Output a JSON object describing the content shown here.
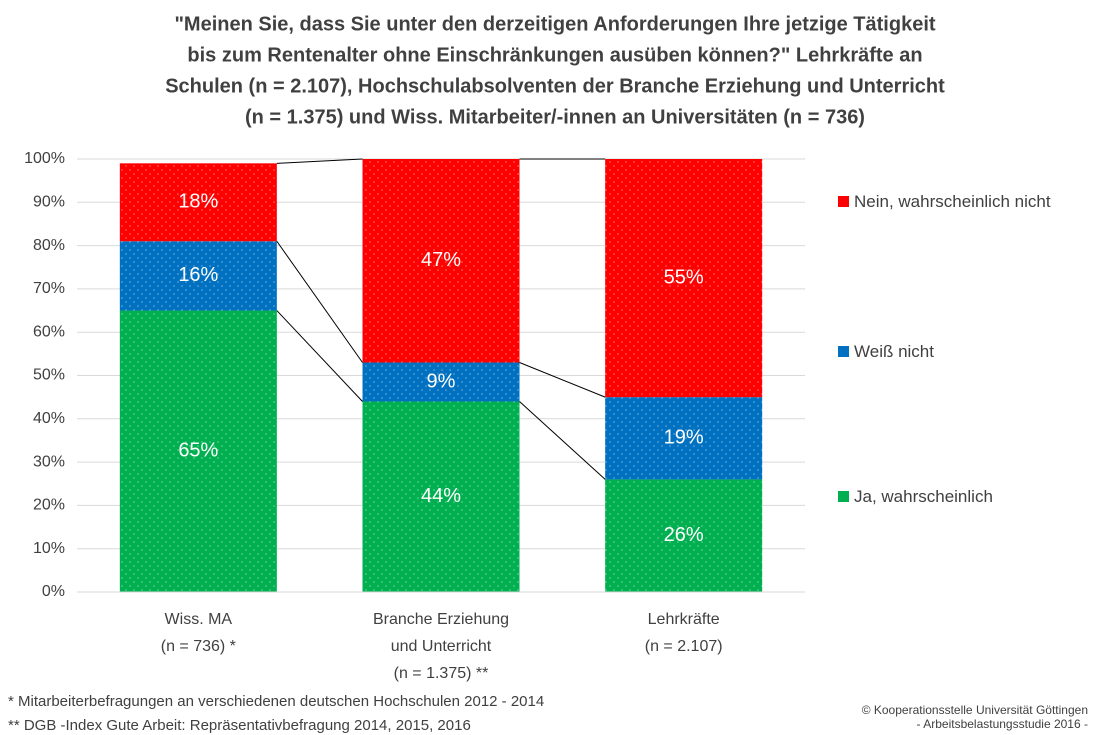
{
  "chart_data": {
    "type": "stacked_bar",
    "title": [
      "\"Meinen Sie, dass Sie unter den derzeitigen Anforderungen Ihre jetzige Tätigkeit",
      "bis zum Rentenalter ohne Einschränkungen ausüben können?\" Lehrkräfte an",
      "Schulen  (n  = 2.107), Hochschulabsolventen der Branche Erziehung und Unterricht",
      "(n = 1.375) und Wiss. Mitarbeiter/-innen an Universitäten (n = 736)"
    ],
    "categories": [
      [
        "Wiss. MA",
        "(n = 736) *"
      ],
      [
        "Branche Erziehung",
        "und Unterricht",
        "(n = 1.375) **"
      ],
      [
        "Lehrkräfte",
        "(n = 2.107)"
      ]
    ],
    "series": [
      {
        "name": "Ja, wahrscheinlich",
        "color": "#00b050",
        "values": [
          65,
          44,
          26
        ],
        "value_labels": [
          "65%",
          "44%",
          "26%"
        ]
      },
      {
        "name": "Weiß nicht",
        "color": "#0070c0",
        "values": [
          16,
          9,
          19
        ],
        "value_labels": [
          "16%",
          "9%",
          "19%"
        ]
      },
      {
        "name": "Nein, wahrscheinlich nicht",
        "color": "#ff0000",
        "values": [
          18,
          47,
          55
        ],
        "value_labels": [
          "18%",
          "47%",
          "55%"
        ]
      }
    ],
    "ylim": [
      0,
      100
    ],
    "yticks": [
      {
        "value": 0,
        "label": "0%"
      },
      {
        "value": 10,
        "label": "10%"
      },
      {
        "value": 20,
        "label": "20%"
      },
      {
        "value": 30,
        "label": "30%"
      },
      {
        "value": 40,
        "label": "40%"
      },
      {
        "value": 50,
        "label": "50%"
      },
      {
        "value": 60,
        "label": "60%"
      },
      {
        "value": 70,
        "label": "70%"
      },
      {
        "value": 80,
        "label": "80%"
      },
      {
        "value": 90,
        "label": "90%"
      },
      {
        "value": 100,
        "label": "100%"
      }
    ],
    "grid": true,
    "legend": "right",
    "footnotes": [
      "*   Mitarbeiterbefragungen an verschiedenen deutschen Hochschulen 2012 - 2014",
      "** DGB -Index Gute Arbeit:  Repräsentativbefragung 2014, 2015, 2016"
    ],
    "credit": [
      "© Kooperationsstelle Universität Göttingen",
      "- Arbeitsbelastungsstudie 2016 -"
    ]
  }
}
